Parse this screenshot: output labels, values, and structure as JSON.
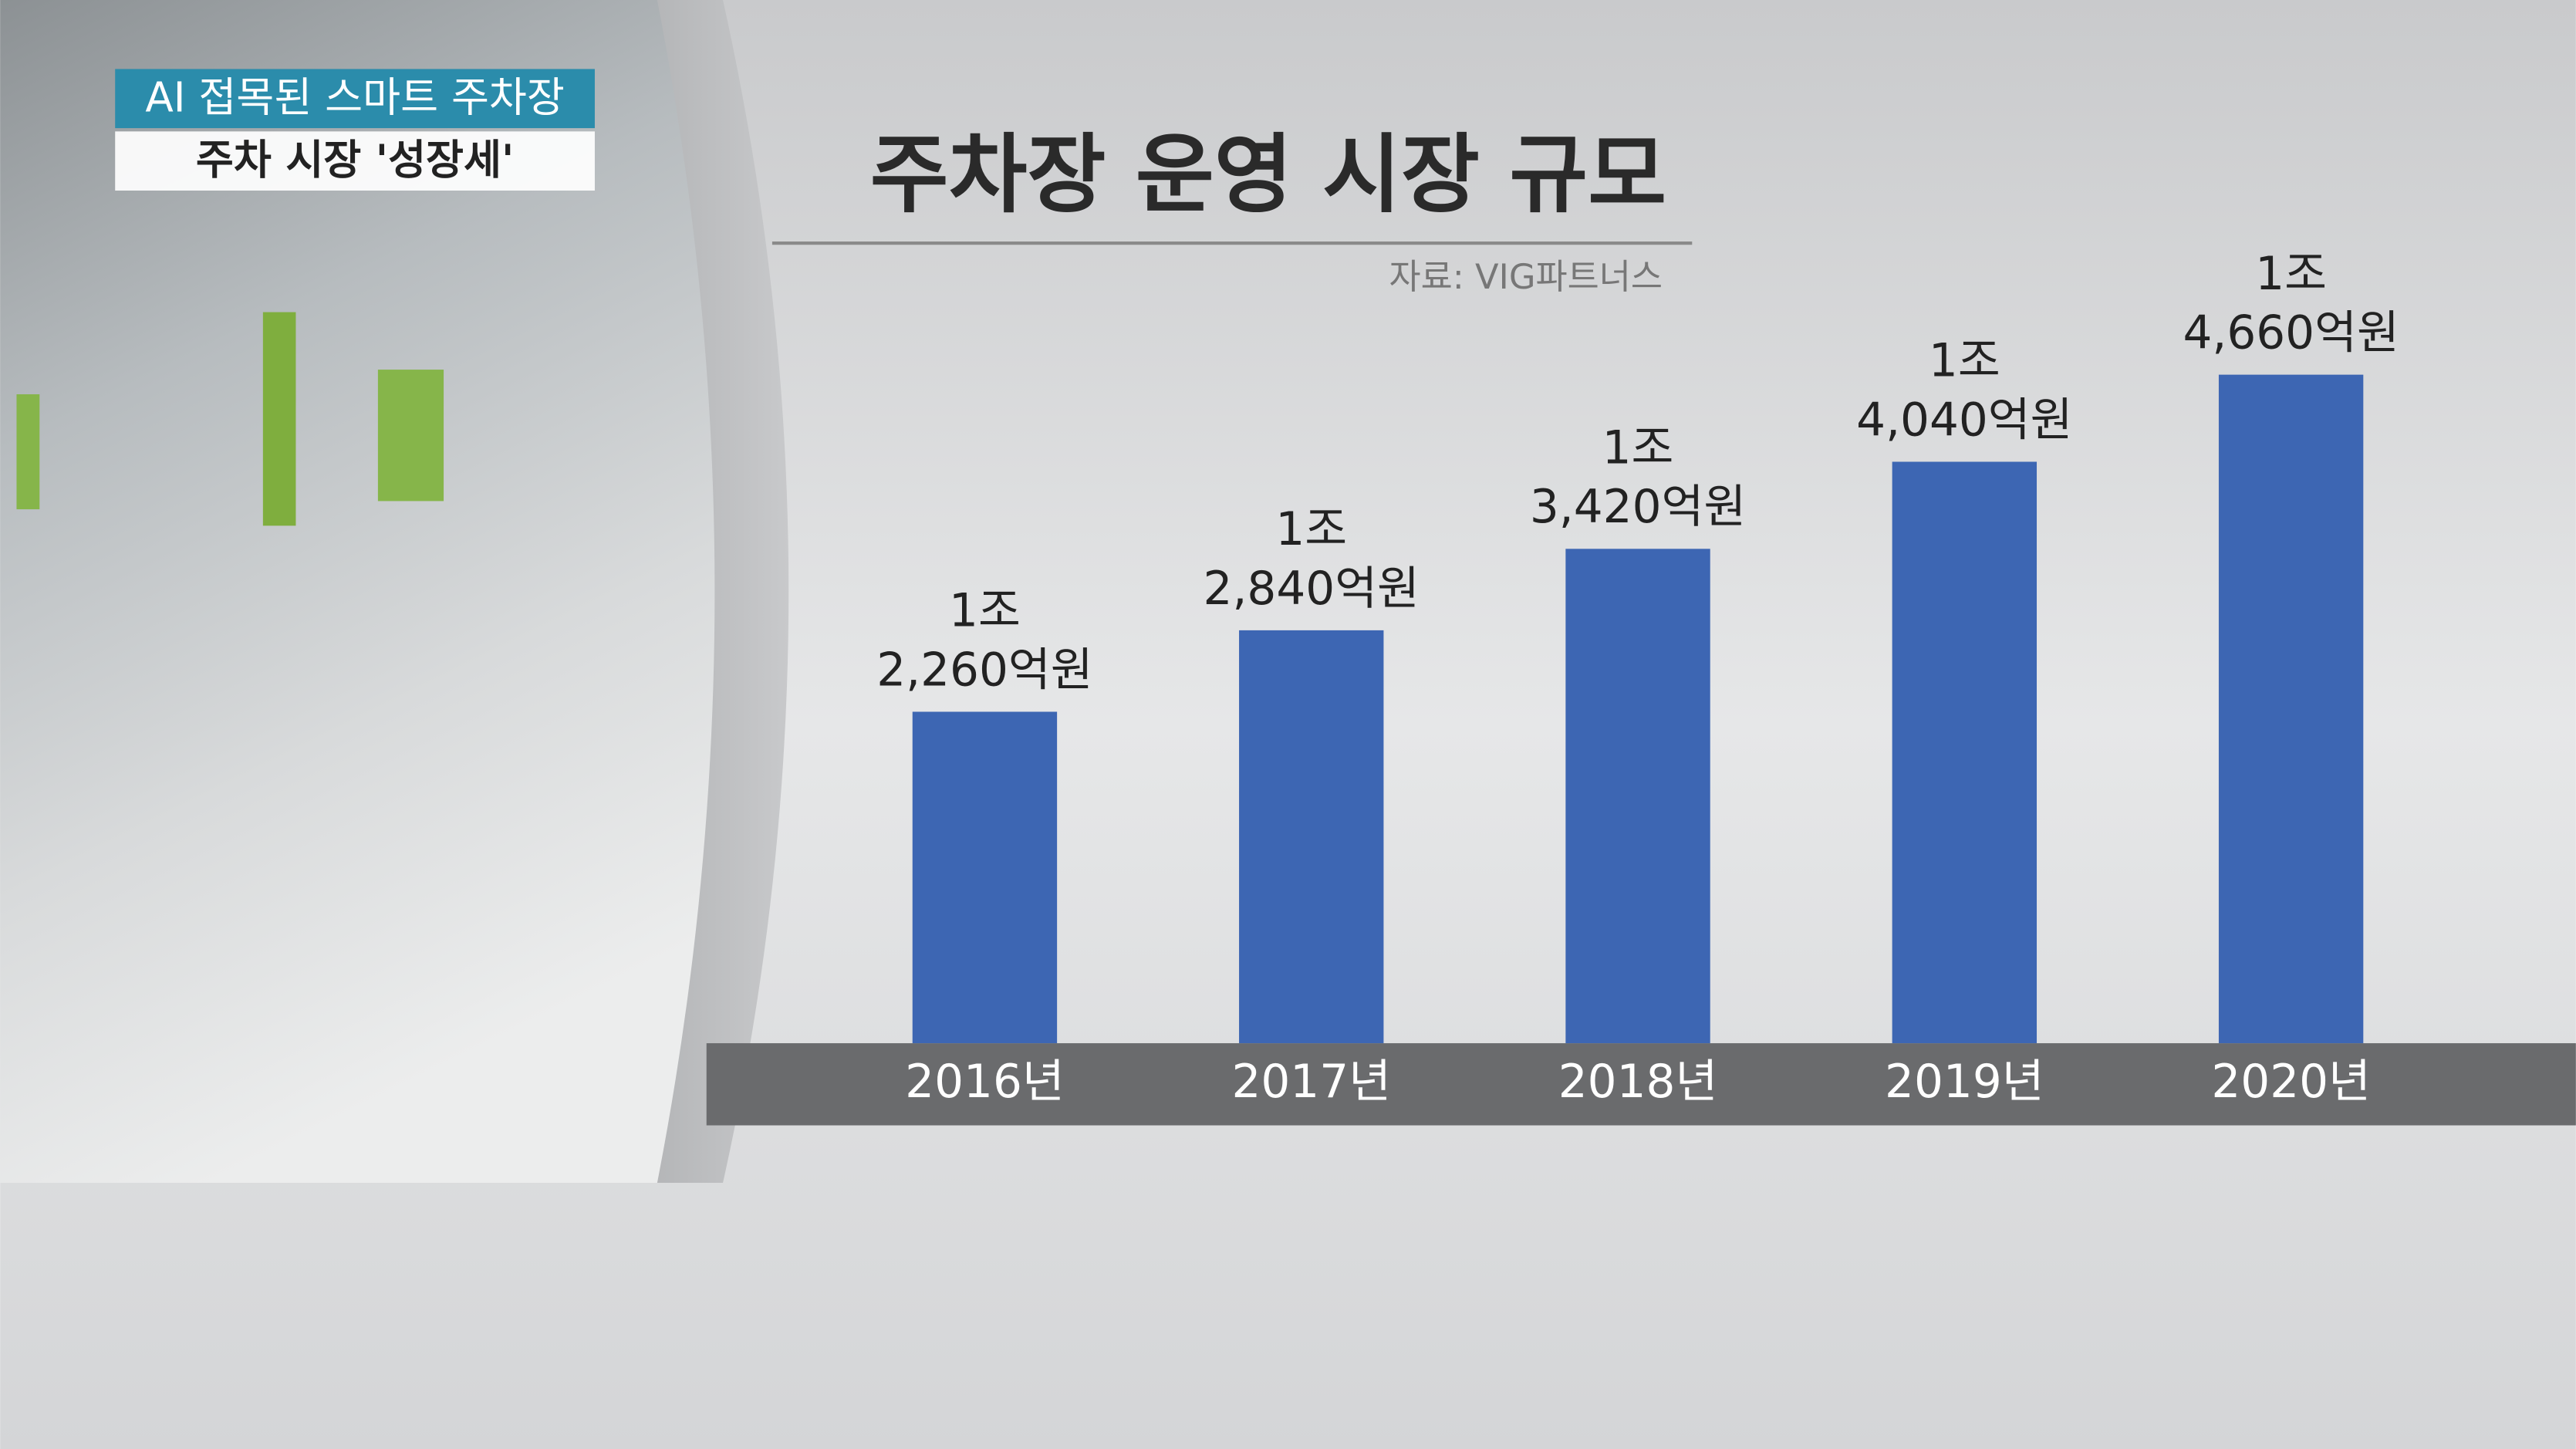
{
  "chart_data": {
    "type": "bar",
    "caption": [
      "AI 접목된 스마트 주차장",
      "주차 시장 '성장세'"
    ],
    "title": "주차장 운영 시장 규모",
    "source": "자료: VIG파트너스",
    "categories": [
      "2016년",
      "2017년",
      "2018년",
      "2019년",
      "2020년"
    ],
    "values": [
      12260,
      12840,
      13420,
      14040,
      14660
    ],
    "value_labels": [
      "1조 2,260억원",
      "1조 2,840억원",
      "1조 3,420억원",
      "1조 4,040억원",
      "1조 4,660억원"
    ],
    "color": "#3d66b3",
    "ylim": [
      9900,
      15000
    ]
  }
}
